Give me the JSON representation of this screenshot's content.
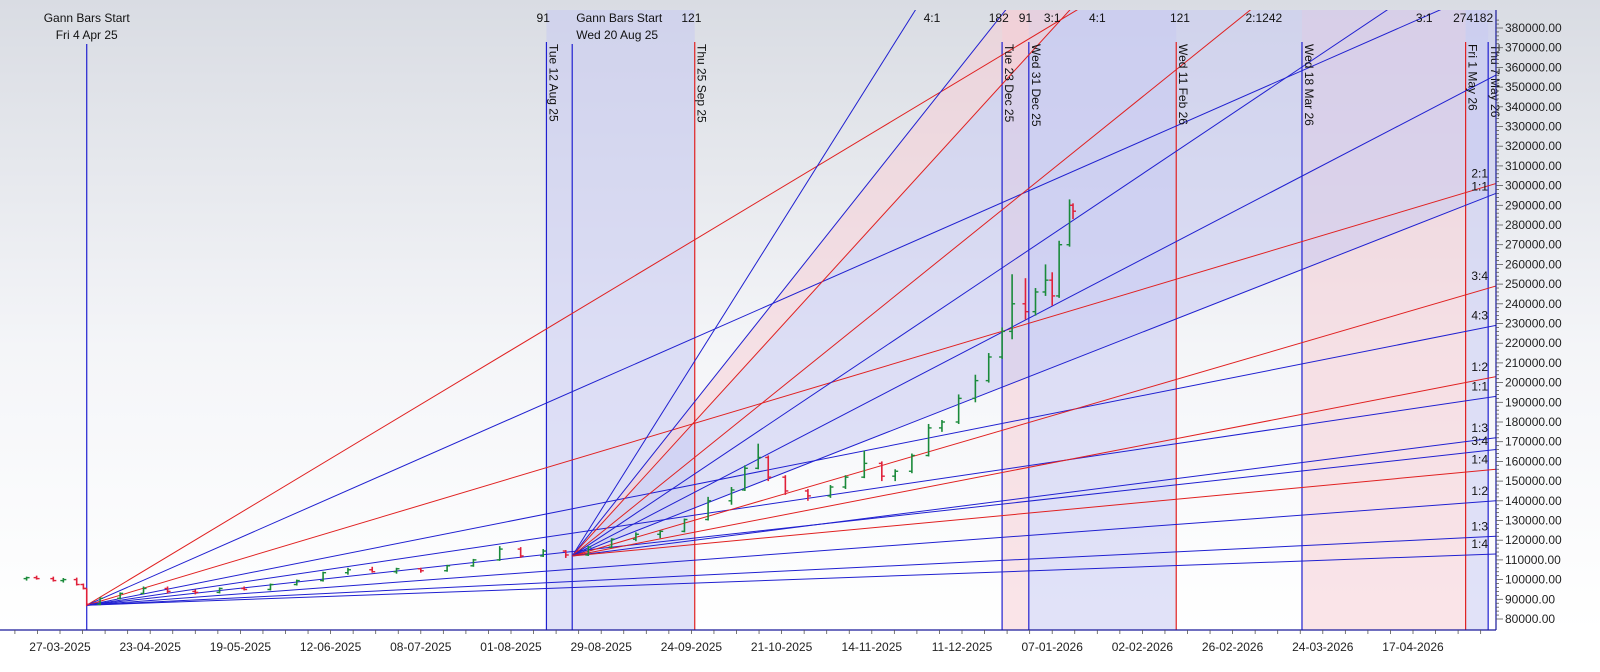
{
  "chart_data": {
    "type": "bar",
    "subtype": "ohlc-with-gann-fans",
    "title": "",
    "xlabel": "",
    "ylabel": "",
    "ylim": [
      74400,
      389000
    ],
    "grid": false,
    "x_ticks": [
      "27-03-2025",
      "23-04-2025",
      "19-05-2025",
      "12-06-2025",
      "08-07-2025",
      "01-08-2025",
      "29-08-2025",
      "24-09-2025",
      "21-10-2025",
      "14-11-2025",
      "11-12-2025",
      "07-01-2026",
      "02-02-2026",
      "26-02-2026",
      "24-03-2026",
      "17-04-2026"
    ],
    "y_ticks": [
      380000,
      370000,
      360000,
      350000,
      340000,
      330000,
      320000,
      310000,
      300000,
      290000,
      280000,
      270000,
      260000,
      250000,
      240000,
      230000,
      220000,
      210000,
      200000,
      190000,
      180000,
      170000,
      160000,
      150000,
      140000,
      130000,
      120000,
      110000,
      100000,
      90000,
      80000
    ],
    "x_end_date": "2026-05-09",
    "x_start_date": "2025-03-13",
    "colors": {
      "up": "#1a8a3a",
      "down": "#e0203a",
      "blue": "#2020d0",
      "red": "#e02020",
      "lavender": "#c8cbf2",
      "pink": "#f6cdd6",
      "axis": "#1a1a9a"
    },
    "gann_starts": [
      {
        "label": "Gann Bars Start",
        "date_label": "Fri 4 Apr 25",
        "date": "2025-04-04",
        "price": 87000
      },
      {
        "label": "Gann Bars Start",
        "date_label": "Wed 20 Aug 25",
        "date": "2025-08-20",
        "price": 112000
      }
    ],
    "vertical_lines": [
      {
        "date": "2025-08-12",
        "label": "Tue 12 Aug 25",
        "color": "blue"
      },
      {
        "date": "2025-09-25",
        "label": "Thu 25 Sep 25",
        "color": "red"
      },
      {
        "date": "2025-12-23",
        "label": "Tue 23 Dec 25",
        "color": "blue"
      },
      {
        "date": "2025-12-31",
        "label": "Wed 31 Dec 25",
        "color": "blue"
      },
      {
        "date": "2026-02-11",
        "label": "Wed 11 Feb 26",
        "color": "red"
      },
      {
        "date": "2026-03-18",
        "label": "Wed 18 Mar 26",
        "color": "blue"
      },
      {
        "date": "2026-05-01",
        "label": "Fri 1 May 26",
        "color": "red"
      },
      {
        "date": "2026-05-07",
        "label": "Thu 7 May 26",
        "color": "blue"
      }
    ],
    "shaded_columns": [
      {
        "from": "2025-08-12",
        "to": "2025-08-20",
        "color": "lavender"
      },
      {
        "from": "2025-08-20",
        "to": "2025-09-25",
        "color": "lavender"
      },
      {
        "from": "2025-12-23",
        "to": "2025-12-31",
        "color": "pink"
      },
      {
        "from": "2025-12-31",
        "to": "2026-02-11",
        "color": "lavender"
      },
      {
        "from": "2026-03-18",
        "to": "2026-05-01",
        "color": "pink"
      },
      {
        "from": "2026-05-01",
        "to": "2026-05-07",
        "color": "lavender"
      }
    ],
    "fan_lines": [
      {
        "origin": 0,
        "to": [
          "2026-01-14",
          389000
        ],
        "color": "red"
      },
      {
        "origin": 0,
        "to": [
          "2026-04-24",
          389000
        ],
        "color": "blue"
      },
      {
        "origin": 0,
        "to": [
          "2026-05-09",
          301000
        ],
        "color": "red"
      },
      {
        "origin": 0,
        "to": [
          "2026-05-09",
          229000
        ],
        "color": "blue"
      },
      {
        "origin": 0,
        "to": [
          "2026-05-09",
          193000
        ],
        "color": "blue"
      },
      {
        "origin": 0,
        "to": [
          "2026-05-09",
          166000
        ],
        "color": "blue"
      },
      {
        "origin": 0,
        "to": [
          "2026-05-09",
          140000
        ],
        "color": "blue"
      },
      {
        "origin": 0,
        "to": [
          "2026-05-09",
          122000
        ],
        "color": "blue"
      },
      {
        "origin": 0,
        "to": [
          "2026-05-09",
          113000
        ],
        "color": "blue"
      },
      {
        "origin": 1,
        "to": [
          "2025-11-27",
          389000
        ],
        "color": "blue"
      },
      {
        "origin": 1,
        "to": [
          "2025-12-24",
          389000
        ],
        "color": "blue"
      },
      {
        "origin": 1,
        "to": [
          "2026-01-12",
          389000
        ],
        "color": "red"
      },
      {
        "origin": 1,
        "to": [
          "2026-03-03",
          389000
        ],
        "color": "red"
      },
      {
        "origin": 1,
        "to": [
          "2026-04-10",
          389000
        ],
        "color": "blue"
      },
      {
        "origin": 1,
        "to": [
          "2026-05-09",
          356000
        ],
        "color": "blue"
      },
      {
        "origin": 1,
        "to": [
          "2026-05-09",
          296000
        ],
        "color": "blue"
      },
      {
        "origin": 1,
        "to": [
          "2026-05-09",
          249000
        ],
        "color": "red"
      },
      {
        "origin": 1,
        "to": [
          "2026-05-09",
          203000
        ],
        "color": "red"
      },
      {
        "origin": 1,
        "to": [
          "2026-05-09",
          172000
        ],
        "color": "blue"
      },
      {
        "origin": 1,
        "to": [
          "2026-05-09",
          156000
        ],
        "color": "red"
      }
    ],
    "wedges": [
      {
        "a": 10,
        "b": 11,
        "color": "pink"
      },
      {
        "a": 11,
        "b": 15,
        "color": "lavender"
      }
    ],
    "top_labels": [
      {
        "text": "91",
        "date": "2025-08-11"
      },
      {
        "text": "121",
        "date": "2025-09-24"
      },
      {
        "text": "4:1",
        "date": "2025-12-02"
      },
      {
        "text": "182",
        "date": "2025-12-22"
      },
      {
        "text": "91",
        "date": "2025-12-30"
      },
      {
        "text": "3:1",
        "date": "2026-01-07"
      },
      {
        "text": "4:1",
        "date": "2026-01-20"
      },
      {
        "text": "121",
        "date": "2026-02-12"
      },
      {
        "text": "2:1242",
        "date": "2026-03-07"
      },
      {
        "text": "3:1",
        "date": "2026-04-20"
      },
      {
        "text": "274182",
        "date": "2026-05-03"
      }
    ],
    "right_labels": [
      {
        "text": "2:1",
        "price": 304000
      },
      {
        "text": "1:1",
        "price": 299000
      },
      {
        "text": "3:4",
        "price": 252000
      },
      {
        "text": "4:3",
        "price": 232000
      },
      {
        "text": "1:2",
        "price": 206000
      },
      {
        "text": "1:1",
        "price": 196000
      },
      {
        "text": "1:3",
        "price": 175000
      },
      {
        "text": "3:4",
        "price": 169000
      },
      {
        "text": "1:4",
        "price": 159000
      },
      {
        "text": "1:2",
        "price": 143000
      },
      {
        "text": "1:3",
        "price": 125000
      },
      {
        "text": "1:4",
        "price": 116000
      }
    ],
    "bars": [
      [
        "2025-03-17",
        100500,
        101500,
        99500,
        101000
      ],
      [
        "2025-03-20",
        101000,
        102000,
        100000,
        100500
      ],
      [
        "2025-03-25",
        100500,
        101500,
        99000,
        99500
      ],
      [
        "2025-03-28",
        99500,
        100800,
        98500,
        100000
      ],
      [
        "2025-04-01",
        100000,
        101000,
        97000,
        97500
      ],
      [
        "2025-04-03",
        97500,
        98000,
        95000,
        95500
      ],
      [
        "2025-04-04",
        95500,
        95500,
        86500,
        87500
      ],
      [
        "2025-04-08",
        87500,
        91000,
        87000,
        90500
      ],
      [
        "2025-04-14",
        90500,
        93500,
        90000,
        93000
      ],
      [
        "2025-04-21",
        93000,
        96500,
        92500,
        95500
      ],
      [
        "2025-04-28",
        95500,
        96500,
        93000,
        94000
      ],
      [
        "2025-05-06",
        94000,
        95000,
        92500,
        93500
      ],
      [
        "2025-05-13",
        93500,
        96000,
        93000,
        95500
      ],
      [
        "2025-05-20",
        95500,
        96500,
        94500,
        95000
      ],
      [
        "2025-05-27",
        95000,
        98000,
        94500,
        97500
      ],
      [
        "2025-06-03",
        97500,
        100000,
        97000,
        99500
      ],
      [
        "2025-06-10",
        99500,
        104000,
        99000,
        103500
      ],
      [
        "2025-06-17",
        103500,
        106000,
        102500,
        105000
      ],
      [
        "2025-06-24",
        105000,
        106500,
        103500,
        104000
      ],
      [
        "2025-07-01",
        104000,
        106000,
        103000,
        105500
      ],
      [
        "2025-07-08",
        105500,
        106000,
        103500,
        104500
      ],
      [
        "2025-07-15",
        104500,
        107500,
        104000,
        107000
      ],
      [
        "2025-07-22",
        107000,
        110500,
        106500,
        110000
      ],
      [
        "2025-07-29",
        110000,
        117000,
        109500,
        115500
      ],
      [
        "2025-08-04",
        115500,
        116500,
        111000,
        112000
      ],
      [
        "2025-08-11",
        112000,
        115500,
        111500,
        114500
      ],
      [
        "2025-08-18",
        114500,
        115000,
        111000,
        112500
      ],
      [
        "2025-08-25",
        112500,
        117000,
        112000,
        116500
      ],
      [
        "2025-09-01",
        116500,
        121000,
        116000,
        120500
      ],
      [
        "2025-09-08",
        120500,
        124000,
        119500,
        123000
      ],
      [
        "2025-09-15",
        123000,
        125000,
        121000,
        124500
      ],
      [
        "2025-09-22",
        124500,
        131000,
        124000,
        130500
      ],
      [
        "2025-09-29",
        130500,
        142000,
        130000,
        140000
      ],
      [
        "2025-10-06",
        140000,
        147000,
        138000,
        145500
      ],
      [
        "2025-10-10",
        145500,
        158000,
        145000,
        156500
      ],
      [
        "2025-10-14",
        156500,
        169000,
        156000,
        162000
      ],
      [
        "2025-10-17",
        162000,
        163000,
        150000,
        152000
      ],
      [
        "2025-10-22",
        152000,
        153000,
        143000,
        145000
      ],
      [
        "2025-10-28",
        145000,
        146000,
        140000,
        142500
      ],
      [
        "2025-11-03",
        142500,
        148000,
        141500,
        147000
      ],
      [
        "2025-11-07",
        147000,
        153000,
        146000,
        152000
      ],
      [
        "2025-11-12",
        152000,
        165500,
        151500,
        159000
      ],
      [
        "2025-11-17",
        159000,
        160000,
        150000,
        152500
      ],
      [
        "2025-11-21",
        152500,
        156000,
        150000,
        155000
      ],
      [
        "2025-11-26",
        155000,
        164000,
        154000,
        163000
      ],
      [
        "2025-12-01",
        163000,
        179000,
        162500,
        177000
      ],
      [
        "2025-12-05",
        177000,
        181000,
        175000,
        180000
      ],
      [
        "2025-12-10",
        180000,
        194000,
        179000,
        192000
      ],
      [
        "2025-12-15",
        192000,
        204000,
        190000,
        201000
      ],
      [
        "2025-12-19",
        201000,
        215000,
        200000,
        213000
      ],
      [
        "2025-12-23",
        213000,
        228000,
        212000,
        226000
      ],
      [
        "2025-12-26",
        226000,
        255000,
        222000,
        240000
      ],
      [
        "2025-12-30",
        240000,
        253000,
        232000,
        236000
      ],
      [
        "2026-01-02",
        236000,
        248000,
        234000,
        246000
      ],
      [
        "2026-01-05",
        246000,
        260000,
        244000,
        252000
      ],
      [
        "2026-01-07",
        252000,
        256000,
        239000,
        244000
      ],
      [
        "2026-01-09",
        244000,
        272000,
        243000,
        270000
      ],
      [
        "2026-01-12",
        270000,
        293000,
        269000,
        290000
      ],
      [
        "2026-01-13",
        290000,
        291000,
        283000,
        287000
      ]
    ]
  }
}
